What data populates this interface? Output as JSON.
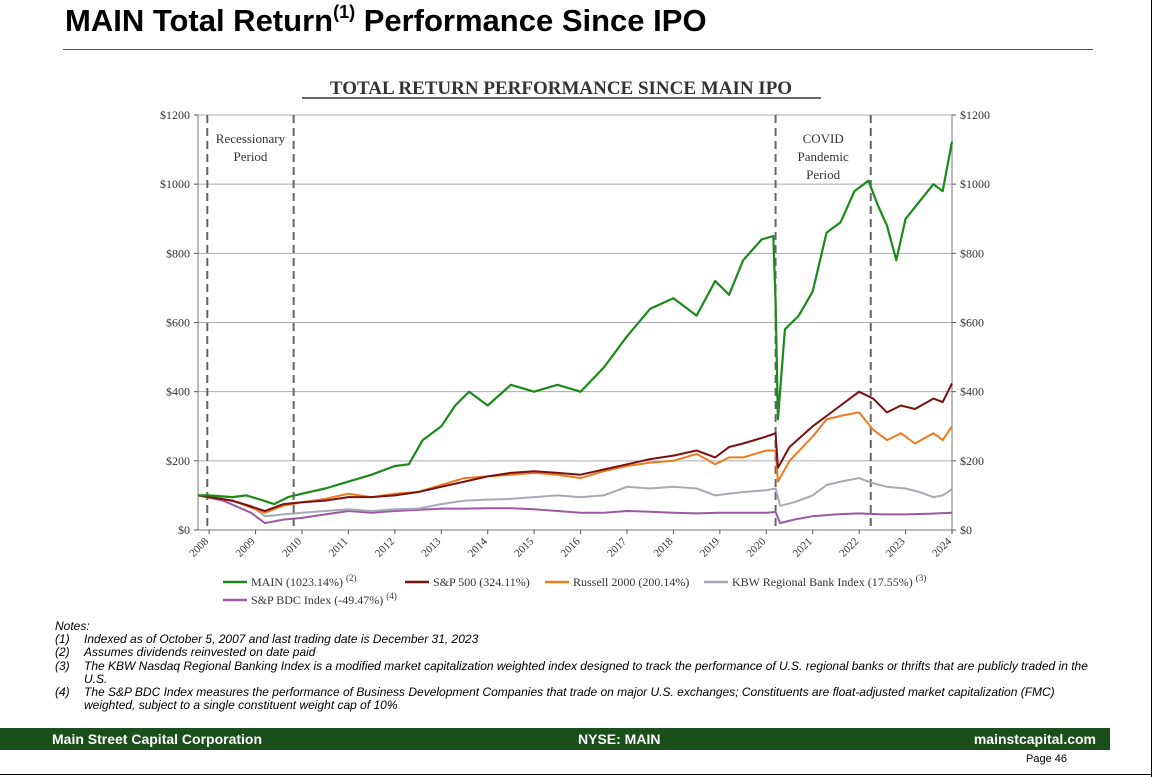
{
  "page": {
    "title_main": "MAIN Total Return",
    "title_sup": "(1)",
    "title_rest": " Performance Since IPO"
  },
  "chart_data": {
    "type": "line",
    "title": "TOTAL RETURN PERFORMANCE SINCE MAIN IPO",
    "xlabel": "",
    "ylabel": "",
    "xlim": [
      2007.76,
      2024.0
    ],
    "ylim": [
      0,
      1200
    ],
    "y_ticks": [
      "$0",
      "$200",
      "$400",
      "$600",
      "$800",
      "$1000",
      "$1200"
    ],
    "y_tick_values": [
      0,
      200,
      400,
      600,
      800,
      1000,
      1200
    ],
    "x_ticks": [
      "2008",
      "2009",
      "2010",
      "2011",
      "2012",
      "2013",
      "2014",
      "2015",
      "2016",
      "2017",
      "2018",
      "2019",
      "2020",
      "2021",
      "2022",
      "2023",
      "2024"
    ],
    "grid": true,
    "legend_position": "bottom",
    "periods": [
      {
        "label": "Recessionary Period",
        "lines": [
          "Recessionary",
          "Period"
        ],
        "start": 2007.96,
        "end": 2009.82
      },
      {
        "label": "COVID Pandemic Period",
        "lines": [
          "COVID",
          "Pandemic",
          "Period"
        ],
        "start": 2020.2,
        "end": 2022.25
      }
    ],
    "series": [
      {
        "name": "MAIN (1023.14%)",
        "sup": "(2)",
        "color": "#1a8a1a",
        "x": [
          2007.76,
          2008.0,
          2008.5,
          2008.8,
          2009.1,
          2009.4,
          2009.7,
          2010.0,
          2010.5,
          2011.0,
          2011.5,
          2012.0,
          2012.3,
          2012.6,
          2013.0,
          2013.3,
          2013.6,
          2014.0,
          2014.5,
          2015.0,
          2015.5,
          2016.0,
          2016.5,
          2017.0,
          2017.5,
          2018.0,
          2018.5,
          2018.9,
          2019.2,
          2019.5,
          2019.9,
          2020.15,
          2020.2,
          2020.25,
          2020.4,
          2020.7,
          2021.0,
          2021.3,
          2021.6,
          2021.9,
          2022.2,
          2022.4,
          2022.6,
          2022.8,
          2023.0,
          2023.3,
          2023.6,
          2023.8,
          2024.0
        ],
        "values": [
          100,
          100,
          95,
          100,
          88,
          75,
          95,
          105,
          120,
          140,
          160,
          185,
          190,
          260,
          300,
          360,
          400,
          360,
          420,
          400,
          420,
          400,
          470,
          560,
          640,
          670,
          620,
          720,
          680,
          780,
          840,
          850,
          660,
          320,
          580,
          620,
          690,
          860,
          890,
          980,
          1010,
          940,
          880,
          780,
          900,
          950,
          1000,
          980,
          1123
        ]
      },
      {
        "name": "S&P 500 (324.11%)",
        "sup": "",
        "color": "#7a1010",
        "x": [
          2007.76,
          2008.5,
          2009.2,
          2009.6,
          2010.0,
          2010.5,
          2011.0,
          2011.5,
          2012.0,
          2012.5,
          2013.0,
          2013.5,
          2014.0,
          2014.5,
          2015.0,
          2015.5,
          2016.0,
          2016.5,
          2017.0,
          2017.5,
          2018.0,
          2018.5,
          2018.9,
          2019.2,
          2019.5,
          2020.0,
          2020.2,
          2020.25,
          2020.5,
          2021.0,
          2021.5,
          2022.0,
          2022.3,
          2022.6,
          2022.9,
          2023.2,
          2023.6,
          2023.8,
          2024.0
        ],
        "values": [
          100,
          85,
          55,
          75,
          80,
          85,
          95,
          95,
          100,
          110,
          125,
          140,
          155,
          165,
          170,
          165,
          160,
          175,
          190,
          205,
          215,
          230,
          210,
          240,
          250,
          270,
          280,
          180,
          240,
          300,
          350,
          400,
          380,
          340,
          360,
          350,
          380,
          370,
          424
        ]
      },
      {
        "name": "Russell 2000 (200.14%)",
        "sup": "",
        "color": "#f07a20",
        "x": [
          2007.76,
          2008.5,
          2009.2,
          2009.6,
          2010.0,
          2010.5,
          2011.0,
          2011.5,
          2012.0,
          2012.5,
          2013.0,
          2013.5,
          2014.0,
          2014.5,
          2015.0,
          2015.5,
          2016.0,
          2016.5,
          2017.0,
          2017.5,
          2018.0,
          2018.5,
          2018.9,
          2019.2,
          2019.5,
          2020.0,
          2020.2,
          2020.25,
          2020.5,
          2021.0,
          2021.3,
          2021.6,
          2022.0,
          2022.3,
          2022.6,
          2022.9,
          2023.2,
          2023.6,
          2023.8,
          2024.0
        ],
        "values": [
          100,
          85,
          50,
          70,
          80,
          90,
          105,
          95,
          105,
          110,
          130,
          150,
          155,
          160,
          165,
          160,
          150,
          170,
          185,
          195,
          200,
          220,
          190,
          210,
          210,
          230,
          230,
          140,
          200,
          270,
          320,
          330,
          340,
          290,
          260,
          280,
          250,
          280,
          260,
          300
        ]
      },
      {
        "name": "KBW Regional Bank Index (17.55%)",
        "sup": "(3)",
        "color": "#a8a8b8",
        "x": [
          2007.76,
          2008.3,
          2008.9,
          2009.2,
          2009.6,
          2010.0,
          2010.5,
          2011.0,
          2011.5,
          2012.0,
          2012.5,
          2013.0,
          2013.5,
          2014.0,
          2014.5,
          2015.0,
          2015.5,
          2016.0,
          2016.5,
          2017.0,
          2017.5,
          2018.0,
          2018.5,
          2018.9,
          2019.5,
          2020.0,
          2020.2,
          2020.3,
          2020.6,
          2021.0,
          2021.3,
          2021.6,
          2022.0,
          2022.3,
          2022.6,
          2023.0,
          2023.3,
          2023.6,
          2023.8,
          2024.0
        ],
        "values": [
          100,
          90,
          70,
          40,
          45,
          50,
          55,
          60,
          55,
          60,
          62,
          75,
          85,
          88,
          90,
          95,
          100,
          95,
          100,
          125,
          120,
          125,
          120,
          100,
          110,
          115,
          120,
          70,
          80,
          100,
          130,
          140,
          150,
          135,
          125,
          120,
          110,
          95,
          100,
          118
        ]
      },
      {
        "name": "S&P BDC Index (-49.47%)",
        "sup": "(4)",
        "color": "#9a5aa0",
        "x": [
          2007.76,
          2008.3,
          2008.9,
          2009.2,
          2009.6,
          2010.0,
          2010.5,
          2011.0,
          2011.5,
          2012.0,
          2012.5,
          2013.0,
          2013.5,
          2014.0,
          2014.5,
          2015.0,
          2015.5,
          2016.0,
          2016.5,
          2017.0,
          2017.5,
          2018.0,
          2018.5,
          2019.0,
          2019.5,
          2020.0,
          2020.2,
          2020.3,
          2020.6,
          2021.0,
          2021.5,
          2022.0,
          2022.5,
          2023.0,
          2023.5,
          2024.0
        ],
        "values": [
          100,
          85,
          50,
          20,
          30,
          35,
          45,
          55,
          50,
          55,
          58,
          62,
          62,
          63,
          63,
          60,
          55,
          50,
          50,
          55,
          53,
          50,
          48,
          50,
          50,
          50,
          52,
          20,
          30,
          40,
          45,
          48,
          45,
          45,
          47,
          50
        ]
      }
    ]
  },
  "notes": {
    "heading": "Notes:",
    "items": [
      {
        "num": "(1)",
        "text": "Indexed as of October 5, 2007 and last trading date is December 31, 2023"
      },
      {
        "num": "(2)",
        "text": "Assumes dividends reinvested on date paid"
      },
      {
        "num": "(3)",
        "text": "The KBW Nasdaq Regional Banking Index is a modified market capitalization weighted index designed to track the performance of U.S. regional banks or thrifts that are publicly traded in the U.S."
      },
      {
        "num": "(4)",
        "text": "The S&P BDC Index measures the performance of Business Development Companies that trade on major U.S. exchanges; Constituents are float-adjusted market capitalization (FMC) weighted, subject to a single constituent weight cap of 10%"
      }
    ]
  },
  "footer": {
    "company": "Main Street Capital Corporation",
    "ticker": "NYSE: MAIN",
    "website": "mainstcapital.com",
    "page": "Page  46"
  }
}
